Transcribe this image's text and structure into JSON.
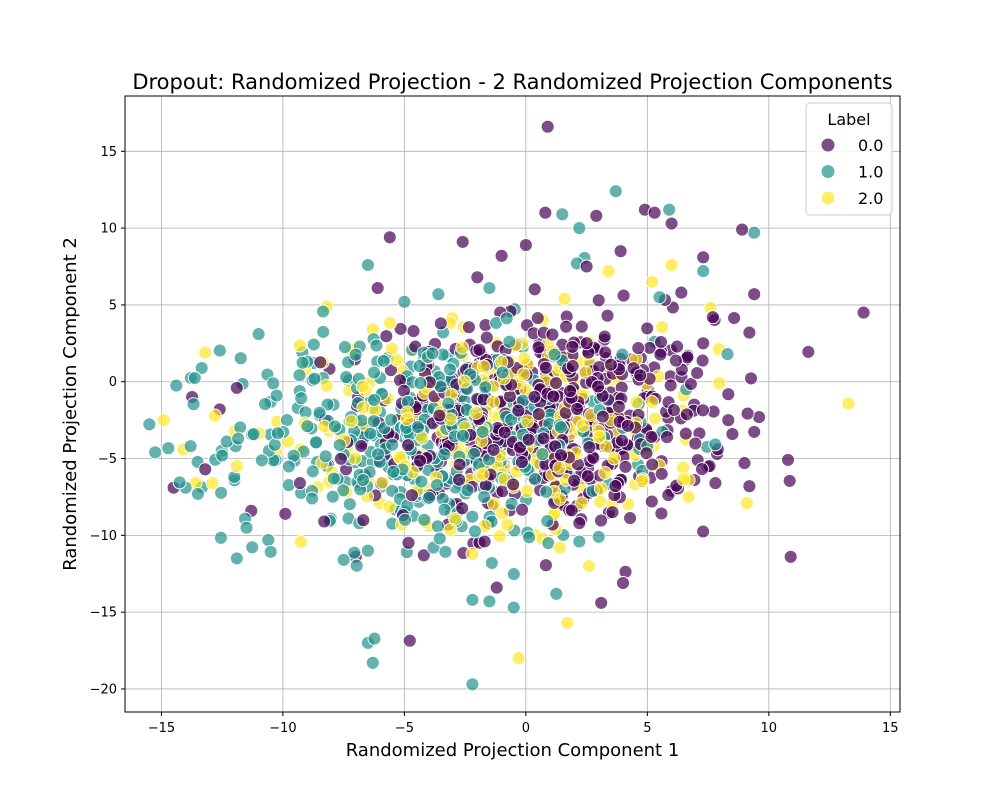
{
  "chart_data": {
    "type": "scatter",
    "title": "Dropout: Randomized Projection - 2 Randomized Projection Components",
    "xlabel": "Randomized Projection Component 1",
    "ylabel": "Randomized Projection Component 2",
    "xlim": [
      -16.5,
      15.4
    ],
    "ylim": [
      -21.5,
      18.6
    ],
    "xticks": [
      -15,
      -10,
      -5,
      0,
      5,
      10,
      15
    ],
    "yticks": [
      -20,
      -15,
      -10,
      -5,
      0,
      5,
      10,
      15
    ],
    "grid": true,
    "legend": {
      "title": "Label",
      "placement": "upper right",
      "entries": [
        "0.0",
        "1.0",
        "2.0"
      ]
    },
    "colors": {
      "0.0": "#440154",
      "1.0": "#21918c",
      "2.0": "#fde725"
    },
    "series": [
      {
        "name": "0.0",
        "center": [
          0.8,
          -2.6
        ],
        "spread": [
          3.6,
          3.4
        ],
        "count": 620,
        "points": [
          [
            0.9,
            16.6
          ],
          [
            13.9,
            4.5
          ],
          [
            10.9,
            -11.4
          ],
          [
            -14.5,
            -6.9
          ],
          [
            -11.9,
            -0.4
          ],
          [
            -9.9,
            -8.6
          ],
          [
            -5.6,
            9.4
          ],
          [
            -2.6,
            9.1
          ],
          [
            0.8,
            11.0
          ],
          [
            2.9,
            10.8
          ],
          [
            4.9,
            11.2
          ],
          [
            5.3,
            11.0
          ],
          [
            6.0,
            10.3
          ],
          [
            8.9,
            9.9
          ],
          [
            9.4,
            5.7
          ],
          [
            9.2,
            3.2
          ],
          [
            9.6,
            -2.3
          ],
          [
            9.0,
            -5.3
          ],
          [
            9.2,
            -6.8
          ],
          [
            7.8,
            -6.6
          ],
          [
            4.0,
            -13.1
          ],
          [
            3.1,
            -14.4
          ],
          [
            -1.2,
            -13.4
          ],
          [
            -7.0,
            -11.4
          ],
          [
            -4.2,
            -11.3
          ],
          [
            -11.3,
            -8.4
          ],
          [
            -12.6,
            -1.8
          ],
          [
            -13.2,
            -5.7
          ],
          [
            -8.3,
            -9.1
          ],
          [
            0.0,
            8.9
          ],
          [
            -1.0,
            8.2
          ],
          [
            2.5,
            7.5
          ],
          [
            7.3,
            8.1
          ],
          [
            7.7,
            4.2
          ],
          [
            7.3,
            2.5
          ],
          [
            -6.1,
            6.1
          ],
          [
            -3.5,
            3.8
          ],
          [
            -2.0,
            6.8
          ],
          [
            6.4,
            5.8
          ],
          [
            3.9,
            8.5
          ],
          [
            -7.4,
            -5.7
          ],
          [
            -9.3,
            -6.6
          ],
          [
            -6.2,
            -7.4
          ],
          [
            6.0,
            -7.1
          ],
          [
            2.2,
            -9.2
          ],
          [
            1.1,
            -9.3
          ],
          [
            -1.7,
            -10.4
          ],
          [
            4.8,
            -6.5
          ],
          [
            8.5,
            -3.4
          ],
          [
            7.9,
            -4.4
          ]
        ]
      },
      {
        "name": "1.0",
        "center": [
          -4.2,
          -3.6
        ],
        "spread": [
          4.0,
          3.4
        ],
        "count": 480,
        "points": [
          [
            3.7,
            12.4
          ],
          [
            5.9,
            11.2
          ],
          [
            9.4,
            9.7
          ],
          [
            1.5,
            10.9
          ],
          [
            2.2,
            10.0
          ],
          [
            -6.5,
            7.6
          ],
          [
            -11.0,
            3.1
          ],
          [
            -9.2,
            1.9
          ],
          [
            -10.4,
            -0.1
          ],
          [
            -12.0,
            -6.2
          ],
          [
            -11.9,
            -11.5
          ],
          [
            -10.6,
            -10.3
          ],
          [
            -11.5,
            -9.5
          ],
          [
            -13.5,
            -7.3
          ],
          [
            -13.8,
            -4.2
          ],
          [
            -6.5,
            -17.0
          ],
          [
            -6.3,
            -18.3
          ],
          [
            -2.2,
            -19.7
          ],
          [
            -0.5,
            -14.7
          ],
          [
            -1.5,
            -14.3
          ],
          [
            -2.2,
            -14.2
          ],
          [
            -7.5,
            -11.6
          ],
          [
            -6.5,
            -11.0
          ],
          [
            -4.9,
            -11.1
          ],
          [
            -3.8,
            -10.8
          ],
          [
            -1.4,
            -11.8
          ],
          [
            3.0,
            -10.1
          ],
          [
            2.2,
            -10.4
          ],
          [
            8.3,
            1.8
          ],
          [
            7.3,
            7.2
          ],
          [
            5.5,
            5.5
          ],
          [
            -5.0,
            5.2
          ],
          [
            -3.6,
            5.7
          ],
          [
            -1.5,
            6.1
          ],
          [
            2.1,
            7.7
          ],
          [
            -8.7,
            0.2
          ],
          [
            -7.4,
            0.3
          ],
          [
            -12.5,
            -4.8
          ],
          [
            -10.3,
            -5.1
          ],
          [
            -8.8,
            -7.6
          ],
          [
            -7.3,
            -8.9
          ],
          [
            -4.3,
            -6.5
          ],
          [
            -5.5,
            -4.1
          ],
          [
            -2.7,
            -2.4
          ],
          [
            -6.0,
            -2.0
          ],
          [
            6.6,
            -0.5
          ],
          [
            5.3,
            2.6
          ],
          [
            4.0,
            -3.0
          ],
          [
            -0.9,
            1.4
          ],
          [
            1.5,
            -5.8
          ]
        ]
      },
      {
        "name": "2.0",
        "center": [
          -0.5,
          -2.8
        ],
        "spread": [
          4.3,
          3.2
        ],
        "count": 300,
        "points": [
          [
            -14.9,
            -2.5
          ],
          [
            -14.1,
            -4.4
          ],
          [
            -13.2,
            1.9
          ],
          [
            -12.8,
            -2.2
          ],
          [
            -8.2,
            4.9
          ],
          [
            -7.2,
            2.1
          ],
          [
            -6.3,
            3.4
          ],
          [
            -2.2,
            -11.2
          ],
          [
            -0.3,
            -18.0
          ],
          [
            1.7,
            -15.7
          ],
          [
            2.6,
            -12.0
          ],
          [
            1.4,
            -10.8
          ],
          [
            9.1,
            -7.9
          ],
          [
            6.7,
            -7.5
          ],
          [
            6.7,
            -6.4
          ],
          [
            5.2,
            6.5
          ],
          [
            6.0,
            7.6
          ],
          [
            7.6,
            4.8
          ],
          [
            3.4,
            7.2
          ],
          [
            1.6,
            5.4
          ],
          [
            -2.6,
            1.7
          ],
          [
            -4.1,
            0.3
          ],
          [
            -5.7,
            -1.1
          ],
          [
            -1.0,
            -6.0
          ],
          [
            0.7,
            4.0
          ],
          [
            1.1,
            2.0
          ],
          [
            2.3,
            -0.9
          ],
          [
            3.5,
            -2.5
          ],
          [
            4.7,
            -4.0
          ],
          [
            -3.0,
            -8.8
          ],
          [
            -5.1,
            -9.3
          ],
          [
            -6.0,
            -7.9
          ],
          [
            -8.1,
            -6.5
          ],
          [
            -9.8,
            -3.9
          ],
          [
            -12.9,
            -6.6
          ],
          [
            -13.6,
            -6.6
          ],
          [
            -11.9,
            -5.5
          ],
          [
            -4.6,
            -2.2
          ],
          [
            -2.3,
            -6.4
          ],
          [
            0.4,
            -10.0
          ]
        ]
      }
    ]
  }
}
